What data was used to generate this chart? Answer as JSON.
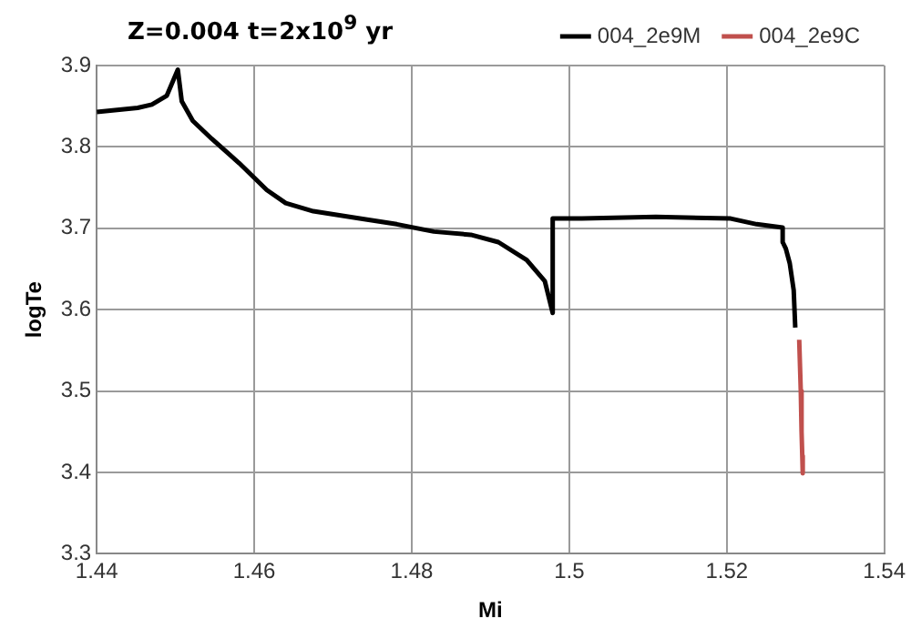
{
  "chart_data": {
    "type": "line",
    "title": "Z=0.004 t=2x10$^{9}$ yr",
    "xlabel": "Mi",
    "ylabel": "logTe",
    "xlim": [
      1.44,
      1.54
    ],
    "xticks": [
      1.44,
      1.46,
      1.48,
      {
        "value": 1.5,
        "label": "1.5"
      },
      1.52,
      1.54
    ],
    "ylim": [
      3.3,
      3.9
    ],
    "yticks": [
      3.3,
      3.4,
      3.5,
      3.6,
      3.7,
      3.8,
      3.9
    ],
    "grid": true,
    "legend": "top right",
    "marker": "none",
    "line_style": "solid",
    "series": [
      {
        "name": "004_2e9M",
        "color": "#000000",
        "x": [
          1.44,
          1.4452,
          1.447,
          1.4489,
          1.4503,
          1.4508,
          1.4522,
          1.4546,
          1.4581,
          1.4616,
          1.464,
          1.4675,
          1.4734,
          1.4781,
          1.4828,
          1.4875,
          1.491,
          1.4946,
          1.4969,
          1.4979,
          1.4979,
          1.5016,
          1.511,
          1.5205,
          1.5238,
          1.5271,
          1.5271,
          1.5275,
          1.528,
          1.5285,
          1.5287
        ],
        "values": [
          3.843,
          3.848,
          3.852,
          3.863,
          3.895,
          3.856,
          3.832,
          3.81,
          3.78,
          3.747,
          3.731,
          3.721,
          3.712,
          3.705,
          3.696,
          3.692,
          3.683,
          3.661,
          3.635,
          3.596,
          3.712,
          3.712,
          3.714,
          3.712,
          3.705,
          3.701,
          3.683,
          3.675,
          3.657,
          3.624,
          3.578
        ]
      },
      {
        "name": "004_2e9C",
        "color": "#c0504d",
        "x": [
          1.5292,
          1.5294,
          1.5295,
          1.5296,
          1.5297,
          1.5296
        ],
        "values": [
          3.563,
          3.5,
          3.45,
          3.417,
          3.42,
          3.399
        ]
      }
    ]
  }
}
